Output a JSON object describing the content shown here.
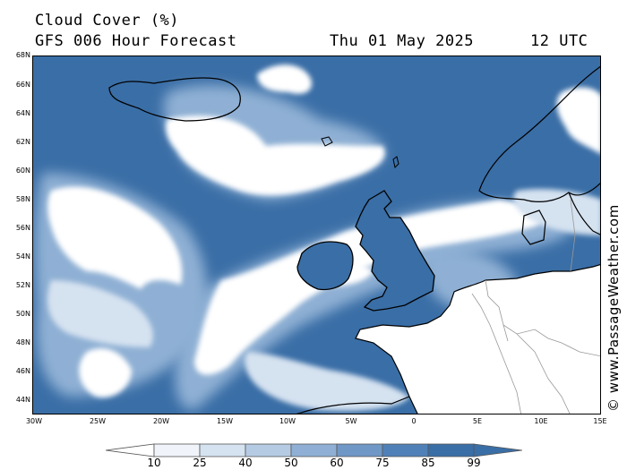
{
  "header": {
    "title": "Cloud Cover (%)",
    "subtitle": "GFS 006 Hour Forecast",
    "date": "Thu 01 May 2025",
    "time": "12 UTC"
  },
  "map": {
    "lat_labels": [
      "68N",
      "66N",
      "64N",
      "62N",
      "60N",
      "58N",
      "56N",
      "54N",
      "52N",
      "50N",
      "48N",
      "46N",
      "44N"
    ],
    "lon_labels": [
      "30W",
      "25W",
      "20W",
      "15W",
      "10W",
      "5W",
      "0",
      "5E",
      "10E",
      "15E"
    ],
    "ocean_cloud_color": "#3a6ea6",
    "land_color": "#ffffff",
    "clear_sky_color": "#ffffff"
  },
  "legend": {
    "labels": [
      "10",
      "25",
      "40",
      "50",
      "60",
      "75",
      "85",
      "99"
    ],
    "colors": [
      "#ffffff",
      "#f0f4fa",
      "#d5e2f0",
      "#b5cbe3",
      "#8fb0d4",
      "#6f98c6",
      "#4f80b8",
      "#3a6ea6"
    ]
  },
  "credit": "© www.PassageWeather.com"
}
